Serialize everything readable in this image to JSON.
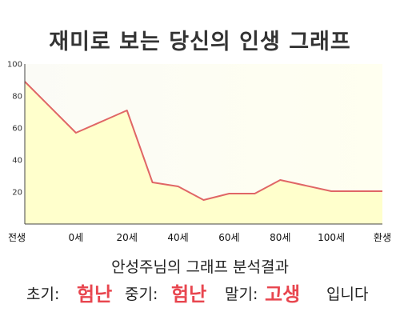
{
  "title": "재미로 보는 당신의 인생 그래프",
  "result": {
    "heading": "안성주님의 그래프 분석결과",
    "early_label": "초기:",
    "early_value": "험난",
    "middle_label": "중기:",
    "middle_value": "험난",
    "late_label": "말기:",
    "late_value": "고생",
    "ending": "입니다"
  },
  "colors": {
    "line": "#e06666",
    "fill": "#ffffcc",
    "emphasis": "#e8464f"
  },
  "chart_data": {
    "type": "area",
    "title": "재미로 보는 당신의 인생 그래프",
    "xlabel": "",
    "ylabel": "",
    "categories": [
      "전생",
      "0세",
      "20세",
      "40세",
      "60세",
      "80세",
      "100세",
      "환생"
    ],
    "ylim": [
      0,
      100
    ],
    "yticks": [
      20,
      40,
      60,
      80,
      100
    ],
    "grid": false,
    "series": [
      {
        "values": [
          [
            0,
            89
          ],
          [
            1,
            57
          ],
          [
            2,
            71
          ],
          [
            2.5,
            26
          ],
          [
            3,
            23.5
          ],
          [
            3.5,
            15
          ],
          [
            4,
            19
          ],
          [
            4.5,
            19
          ],
          [
            5,
            27.5
          ],
          [
            6,
            20.5
          ],
          [
            7,
            20.5
          ]
        ]
      }
    ]
  }
}
